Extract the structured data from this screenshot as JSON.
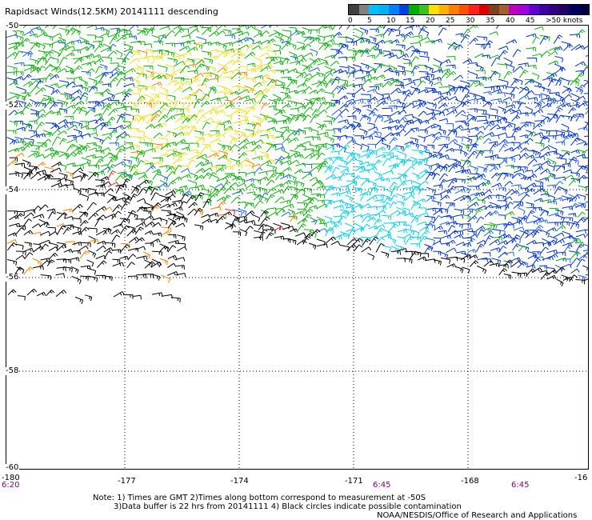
{
  "title": "Rapidsact Winds(12.5KM) 20141111 descending",
  "legend": {
    "colors": [
      "#404040",
      "#808080",
      "#00c0ff",
      "#00b0f0",
      "#0080ff",
      "#0040e0",
      "#00b000",
      "#40c020",
      "#ffe000",
      "#ffb000",
      "#ff8000",
      "#ff5000",
      "#ff2020",
      "#e00000",
      "#804020",
      "#a06030",
      "#c000c0",
      "#a000e0",
      "#6000d0",
      "#4000a0",
      "#300080",
      "#200060",
      "#000060",
      "#000040"
    ],
    "labels": [
      "0",
      "5",
      "10",
      "15",
      "20",
      "25",
      "30",
      "35",
      "40",
      "45",
      ">50 knots"
    ]
  },
  "lat_labels": [
    "-50",
    "-52",
    "-54",
    "-56",
    "-58",
    "-60"
  ],
  "lon_labels": [
    "-180",
    "-177",
    "-174",
    "-171",
    "-168",
    "-16"
  ],
  "time_labels": [
    "6:20",
    "6:45",
    "6:45"
  ],
  "notes": {
    "line1": "Note: 1) Times are GMT 2)Times along bottom correspond to measurement at -50S",
    "line2": "3)Data buffer is 22 hrs from 20141111 4) Black circles indicate possible contamination",
    "line3": "NOAA/NESDIS/Office of Research and Applications"
  },
  "colors": {
    "black": "#000000",
    "green": "#10b010",
    "dark_blue": "#0030d0",
    "blue": "#2060ff",
    "cyan": "#00d0f0",
    "yellow": "#f0e020",
    "orange": "#ff8000",
    "red": "#ff2020"
  }
}
